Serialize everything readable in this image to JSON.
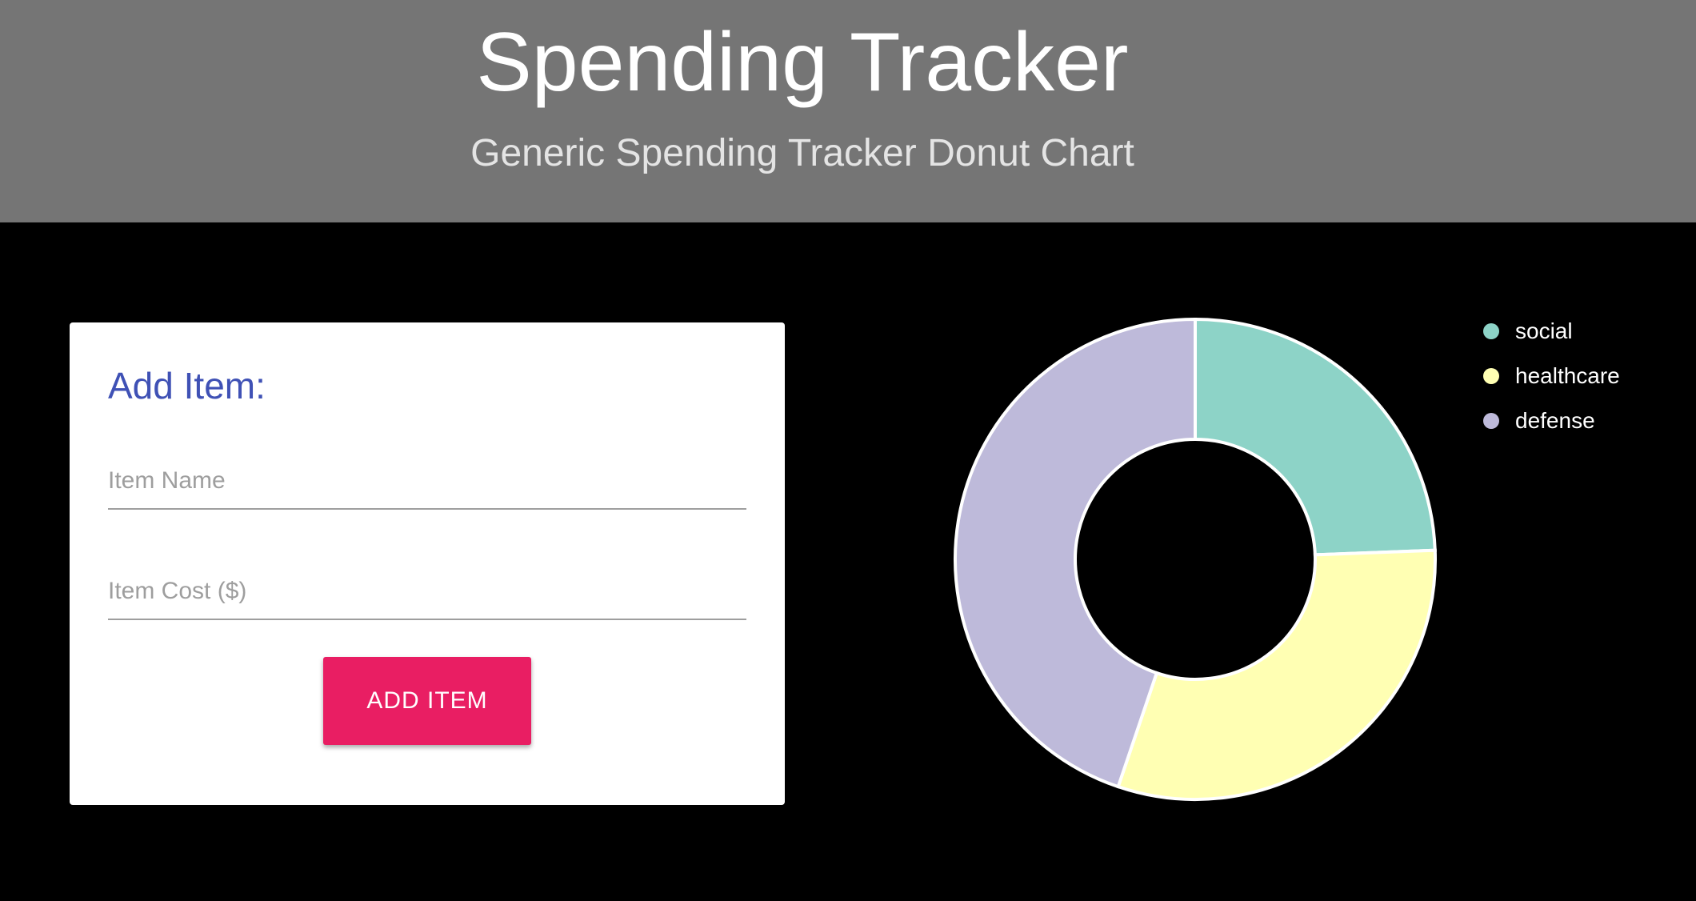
{
  "header": {
    "title": "Spending Tracker",
    "subtitle": "Generic Spending Tracker Donut Chart"
  },
  "form": {
    "heading": "Add Item:",
    "name_placeholder": "Item Name",
    "cost_placeholder": "Item Cost ($)",
    "name_value": "",
    "cost_value": "",
    "add_button_label": "ADD ITEM"
  },
  "colors": {
    "header_bg": "#757575",
    "page_bg": "#000000",
    "accent": "#e91e63",
    "card_title": "#3f51b5"
  },
  "chart_data": {
    "type": "pie",
    "donut": true,
    "title": "",
    "legend_position": "top-right",
    "series": [
      {
        "name": "social",
        "value": 24.4,
        "color": "#8dd3c7"
      },
      {
        "name": "healthcare",
        "value": 30.8,
        "color": "#ffffb3"
      },
      {
        "name": "defense",
        "value": 44.8,
        "color": "#bebada"
      }
    ]
  }
}
